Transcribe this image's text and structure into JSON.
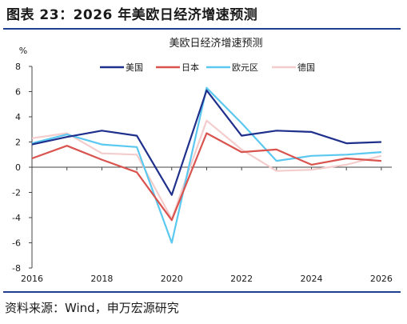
{
  "figure_title": "图表 23：2026 年美欧日经济增速预测",
  "source_note": "资料来源：Wind，申万宏源研究",
  "chart_data": {
    "type": "line",
    "title": "美欧日经济增速预测",
    "ylabel": "%",
    "xlabel": "",
    "x": [
      2016,
      2017,
      2018,
      2019,
      2020,
      2021,
      2022,
      2023,
      2024,
      2025,
      2026
    ],
    "x_ticks": [
      "2016",
      "2018",
      "2020",
      "2022",
      "2024",
      "2026"
    ],
    "y_ticks": [
      "8",
      "6",
      "4",
      "2",
      "0",
      "-2",
      "-4",
      "-6",
      "-8"
    ],
    "xlim": [
      2016,
      2026.3
    ],
    "ylim": [
      -8,
      8
    ],
    "grid": false,
    "legend_position": "top",
    "series": [
      {
        "name": "美国",
        "color": "#1f2f8c",
        "values": [
          1.8,
          2.4,
          2.9,
          2.5,
          -2.2,
          6.1,
          2.5,
          2.9,
          2.8,
          1.9,
          2.0
        ]
      },
      {
        "name": "日本",
        "color": "#d9534f",
        "values": [
          0.7,
          1.7,
          0.6,
          -0.4,
          -4.2,
          2.7,
          1.2,
          1.4,
          0.2,
          0.7,
          0.5
        ]
      },
      {
        "name": "欧元区",
        "color": "#5bc8f0",
        "values": [
          1.9,
          2.6,
          1.8,
          1.6,
          -6.0,
          6.3,
          3.5,
          0.5,
          0.9,
          1.0,
          1.2
        ]
      },
      {
        "name": "德国",
        "color": "#f4cccc",
        "values": [
          2.3,
          2.7,
          1.1,
          1.0,
          -4.1,
          3.7,
          1.4,
          -0.3,
          -0.2,
          0.2,
          0.9
        ]
      }
    ]
  }
}
